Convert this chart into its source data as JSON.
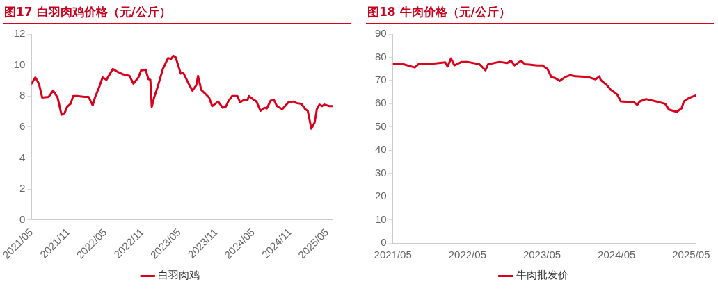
{
  "chart_data": [
    {
      "type": "line",
      "title": "图17  白羽肉鸡价格（元/公斤）",
      "legend": "bottom",
      "grid": false,
      "marker": "none",
      "xlim": [
        "2021-05-01",
        "2025-05-28"
      ],
      "xticks": [
        {
          "value": "2021-05",
          "label": "2021/05"
        },
        {
          "value": "2021-11",
          "label": "2021/11"
        },
        {
          "value": "2022-05",
          "label": "2022/05"
        },
        {
          "value": "2022-11",
          "label": "2022/11"
        },
        {
          "value": "2023-05",
          "label": "2023/05"
        },
        {
          "value": "2023-11",
          "label": "2023/11"
        },
        {
          "value": "2024-05",
          "label": "2024/05"
        },
        {
          "value": "2024-11",
          "label": "2024/11"
        },
        {
          "value": "2025-05",
          "label": "2025/05"
        }
      ],
      "ylim": [
        0,
        12
      ],
      "yticks": [
        0,
        2,
        4,
        6,
        8,
        10,
        12
      ],
      "series": [
        {
          "name": "白羽肉鸡",
          "color": "#d9001b",
          "x": [
            "2021-05-01",
            "2021-05-20",
            "2021-06-07",
            "2021-06-23",
            "2021-07-25",
            "2021-08-17",
            "2021-09-08",
            "2021-09-27",
            "2021-10-12",
            "2021-10-25",
            "2021-11-11",
            "2021-11-24",
            "2021-12-12",
            "2022-01-20",
            "2022-02-08",
            "2022-02-27",
            "2022-03-10",
            "2022-03-29",
            "2022-04-17",
            "2022-05-06",
            "2022-06-07",
            "2022-07-02",
            "2022-07-27",
            "2022-08-29",
            "2022-09-17",
            "2022-10-12",
            "2022-10-25",
            "2022-11-17",
            "2022-11-30",
            "2022-12-10",
            "2022-12-17",
            "2022-12-30",
            "2023-01-16",
            "2023-02-10",
            "2023-03-06",
            "2023-03-22",
            "2023-04-01",
            "2023-04-13",
            "2023-05-08",
            "2023-05-21",
            "2023-06-16",
            "2023-07-05",
            "2023-07-24",
            "2023-08-02",
            "2023-08-18",
            "2023-09-07",
            "2023-09-26",
            "2023-10-11",
            "2023-11-10",
            "2023-12-02",
            "2023-12-17",
            "2023-12-30",
            "2024-01-18",
            "2024-02-13",
            "2024-02-26",
            "2024-03-15",
            "2024-04-03",
            "2024-04-10",
            "2024-04-29",
            "2024-05-17",
            "2024-06-06",
            "2024-06-25",
            "2024-07-07",
            "2024-07-26",
            "2024-08-12",
            "2024-08-27",
            "2024-09-22",
            "2024-10-23",
            "2024-11-18",
            "2024-12-01",
            "2024-12-26",
            "2025-01-15",
            "2025-01-27",
            "2025-02-13",
            "2025-02-28",
            "2025-03-11",
            "2025-03-24",
            "2025-04-06",
            "2025-04-18",
            "2025-05-13",
            "2025-05-26"
          ],
          "values": [
            8.8,
            9.2,
            8.8,
            7.9,
            7.95,
            8.35,
            7.9,
            6.8,
            6.9,
            7.3,
            7.5,
            8.0,
            8.0,
            7.95,
            7.95,
            7.4,
            7.9,
            8.5,
            9.2,
            9.05,
            9.75,
            9.55,
            9.4,
            9.3,
            8.8,
            9.2,
            9.65,
            9.7,
            9.1,
            9.05,
            7.3,
            7.95,
            8.6,
            9.75,
            10.45,
            10.4,
            10.6,
            10.5,
            9.45,
            9.5,
            8.8,
            8.35,
            8.7,
            9.3,
            8.4,
            8.15,
            7.9,
            7.35,
            7.65,
            7.25,
            7.3,
            7.65,
            8.0,
            8.0,
            7.6,
            7.75,
            7.75,
            8.0,
            7.8,
            7.65,
            7.05,
            7.25,
            7.2,
            7.7,
            7.75,
            7.35,
            7.15,
            7.6,
            7.65,
            7.55,
            7.5,
            7.15,
            7.05,
            5.9,
            6.3,
            7.15,
            7.45,
            7.35,
            7.45,
            7.35,
            7.35
          ]
        }
      ]
    },
    {
      "type": "line",
      "title": "图18  牛肉价格（元/公斤）",
      "legend": "bottom",
      "grid": false,
      "marker": "none",
      "xlim": [
        "2021-05-01",
        "2025-05-24"
      ],
      "xticks": [
        {
          "value": "2021-05",
          "label": "2021/05"
        },
        {
          "value": "2022-05",
          "label": "2022/05"
        },
        {
          "value": "2023-05",
          "label": "2023/05"
        },
        {
          "value": "2024-05",
          "label": "2024/05"
        },
        {
          "value": "2025-05",
          "label": "2025/05"
        }
      ],
      "ylim": [
        0,
        90
      ],
      "yticks": [
        0,
        10,
        20,
        30,
        40,
        50,
        60,
        70,
        80,
        90
      ],
      "series": [
        {
          "name": "牛肉批发价",
          "color": "#d9001b",
          "x": [
            "2021-05-01",
            "2021-06-22",
            "2021-08-17",
            "2021-09-05",
            "2021-11-19",
            "2022-01-14",
            "2022-01-26",
            "2022-02-11",
            "2022-02-26",
            "2022-04-03",
            "2022-05-01",
            "2022-06-29",
            "2022-07-29",
            "2022-08-11",
            "2022-10-06",
            "2022-11-13",
            "2022-12-01",
            "2022-12-19",
            "2023-01-20",
            "2023-02-08",
            "2023-04-09",
            "2023-05-03",
            "2023-05-28",
            "2023-06-16",
            "2023-07-05",
            "2023-07-27",
            "2023-08-24",
            "2023-09-18",
            "2023-10-12",
            "2023-12-13",
            "2024-01-20",
            "2024-02-08",
            "2024-02-14",
            "2024-03-15",
            "2024-04-03",
            "2024-05-04",
            "2024-05-22",
            "2024-06-29",
            "2024-07-23",
            "2024-08-11",
            "2024-08-24",
            "2024-09-24",
            "2024-11-12",
            "2024-12-26",
            "2025-01-14",
            "2025-02-20",
            "2025-03-15",
            "2025-03-27",
            "2025-04-21",
            "2025-05-22"
          ],
          "values": [
            77.1,
            77,
            75.6,
            77,
            77.3,
            77.8,
            76,
            79.5,
            76.5,
            78,
            78,
            77,
            74.4,
            77,
            78,
            77.5,
            78.5,
            76.5,
            78.5,
            77,
            76.5,
            76.5,
            75,
            71.5,
            71,
            69.8,
            71.5,
            72.3,
            71.8,
            71.5,
            70.5,
            71.8,
            70.2,
            68,
            66,
            64,
            61,
            60.8,
            60.8,
            59.5,
            61,
            62,
            61,
            60,
            57.5,
            56.5,
            58,
            61,
            62.5,
            63.5
          ]
        }
      ]
    }
  ]
}
